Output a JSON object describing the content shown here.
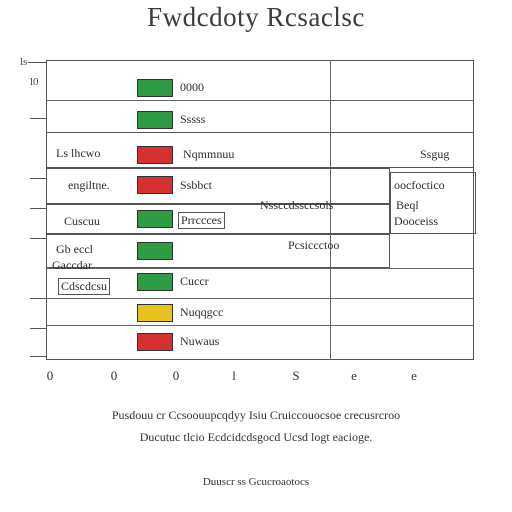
{
  "title": "Fwdcdoty Rcsaclsc",
  "axis": {
    "y_ticks": [
      "ls",
      "l0"
    ],
    "x_ticks": [
      "0",
      "0",
      "0",
      "l",
      "S",
      "e",
      "e"
    ]
  },
  "rows": [
    {
      "label": "0000",
      "color": "#2e9b45"
    },
    {
      "label": "Sssss",
      "color": "#2e9b45"
    },
    {
      "label": "Nqmmnuu",
      "color": "#d63030"
    },
    {
      "label": "Ssbbct",
      "color": "#d63030"
    },
    {
      "label": "Prrccces",
      "color": "#2e9b45"
    },
    {
      "label": "",
      "color": "#2e9b45"
    },
    {
      "label": "Cuccr",
      "color": "#2e9b45"
    },
    {
      "label": "Nuqqgcc",
      "color": "#e8c21c"
    },
    {
      "label": "Nuwaus",
      "color": "#d63030"
    }
  ],
  "left_labels": [
    "Ls lhcwo",
    "engiltne.",
    "Cuscuu",
    "Gb eccl",
    "Gaccdar",
    "Cdscdcsu"
  ],
  "right_labels": [
    "Ssgug",
    "oocfoctico",
    "Beql",
    "Dooceiss"
  ],
  "middle_labels": [
    "Nssccdssccsols",
    "Pcsiccctoo"
  ],
  "captions": {
    "line1": "Pusdouu cr Ccsoouupcqdyy Isiu Cruiccouocsoe crecusrcroo",
    "line2": "Ducutuc tlcio Ecdcidcdsgocd Ucsd logt eacioge.",
    "footer": "Duuscr ss Gcucroaotocs"
  }
}
